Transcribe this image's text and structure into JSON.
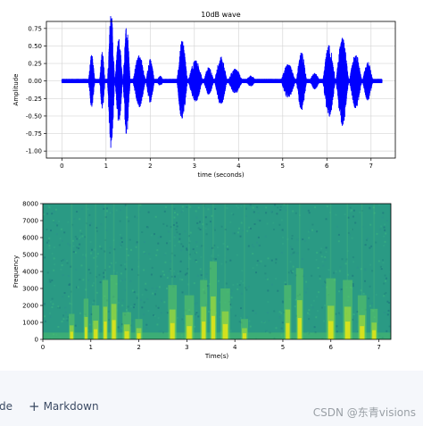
{
  "chart_data": [
    {
      "type": "line",
      "title": "10dB wave",
      "xlabel": "time (seconds)",
      "ylabel": "Amplitude",
      "xlim": [
        -0.35,
        7.55
      ],
      "ylim": [
        -1.1,
        0.85
      ],
      "xticks": [
        0,
        1,
        2,
        3,
        4,
        5,
        6,
        7
      ],
      "yticks": [
        -1.0,
        -0.75,
        -0.5,
        -0.25,
        0.0,
        0.25,
        0.5,
        0.75
      ],
      "ytick_labels": [
        "-1.00",
        "-0.75",
        "-0.50",
        "-0.25",
        "0.00",
        "0.25",
        "0.50",
        "0.75"
      ],
      "grid": true,
      "line_color": "#0000ff",
      "duration": 7.25,
      "noise_floor": 0.03,
      "bursts": [
        {
          "start": 0.6,
          "end": 0.75,
          "peak": 0.38
        },
        {
          "start": 0.85,
          "end": 0.98,
          "peak": 0.42
        },
        {
          "start": 1.03,
          "end": 1.2,
          "peak": 1.0
        },
        {
          "start": 1.2,
          "end": 1.38,
          "peak": 0.62
        },
        {
          "start": 1.38,
          "end": 1.55,
          "peak": 0.78
        },
        {
          "start": 1.6,
          "end": 1.9,
          "peak": 0.38
        },
        {
          "start": 1.9,
          "end": 2.1,
          "peak": 0.32
        },
        {
          "start": 2.15,
          "end": 2.3,
          "peak": 0.08
        },
        {
          "start": 2.6,
          "end": 2.85,
          "peak": 0.58
        },
        {
          "start": 2.85,
          "end": 3.2,
          "peak": 0.3
        },
        {
          "start": 3.2,
          "end": 3.45,
          "peak": 0.2
        },
        {
          "start": 3.45,
          "end": 3.75,
          "peak": 0.35
        },
        {
          "start": 3.75,
          "end": 4.1,
          "peak": 0.18
        },
        {
          "start": 4.15,
          "end": 4.4,
          "peak": 0.08
        },
        {
          "start": 4.95,
          "end": 5.3,
          "peak": 0.25
        },
        {
          "start": 5.3,
          "end": 5.55,
          "peak": 0.42
        },
        {
          "start": 5.6,
          "end": 5.85,
          "peak": 0.12
        },
        {
          "start": 5.9,
          "end": 6.2,
          "peak": 0.52
        },
        {
          "start": 6.2,
          "end": 6.5,
          "peak": 0.65
        },
        {
          "start": 6.5,
          "end": 6.8,
          "peak": 0.4
        },
        {
          "start": 6.8,
          "end": 7.05,
          "peak": 0.28
        }
      ]
    },
    {
      "type": "heatmap",
      "xlabel": "Time(s)",
      "ylabel": "Frequency",
      "xlim": [
        0,
        7.25
      ],
      "ylim": [
        0,
        8000
      ],
      "xticks": [
        0,
        1,
        2,
        3,
        4,
        5,
        6,
        7
      ],
      "yticks": [
        0,
        1000,
        2000,
        3000,
        4000,
        5000,
        6000,
        7000,
        8000
      ],
      "colormap": "viridis",
      "background_color": "#2a9a84",
      "energy_columns": [
        {
          "t": 0.6,
          "w": 0.12,
          "top": 1500
        },
        {
          "t": 0.9,
          "w": 0.1,
          "top": 2400
        },
        {
          "t": 1.1,
          "w": 0.15,
          "top": 2000
        },
        {
          "t": 1.3,
          "w": 0.12,
          "top": 3500
        },
        {
          "t": 1.48,
          "w": 0.15,
          "top": 3800
        },
        {
          "t": 1.75,
          "w": 0.18,
          "top": 1600
        },
        {
          "t": 2.0,
          "w": 0.15,
          "top": 1200
        },
        {
          "t": 2.7,
          "w": 0.18,
          "top": 3200
        },
        {
          "t": 3.05,
          "w": 0.2,
          "top": 2600
        },
        {
          "t": 3.35,
          "w": 0.15,
          "top": 3500
        },
        {
          "t": 3.55,
          "w": 0.15,
          "top": 4600
        },
        {
          "t": 3.8,
          "w": 0.2,
          "top": 3000
        },
        {
          "t": 4.2,
          "w": 0.15,
          "top": 1200
        },
        {
          "t": 5.1,
          "w": 0.15,
          "top": 3200
        },
        {
          "t": 5.35,
          "w": 0.15,
          "top": 4200
        },
        {
          "t": 6.0,
          "w": 0.2,
          "top": 3600
        },
        {
          "t": 6.35,
          "w": 0.2,
          "top": 3500
        },
        {
          "t": 6.65,
          "w": 0.18,
          "top": 2600
        },
        {
          "t": 6.9,
          "w": 0.15,
          "top": 1800
        }
      ]
    }
  ],
  "toolbar": {
    "code_stub": "de",
    "markdown_label": "Markdown",
    "plus_glyph": "+"
  },
  "watermark": "CSDN @东青visions"
}
